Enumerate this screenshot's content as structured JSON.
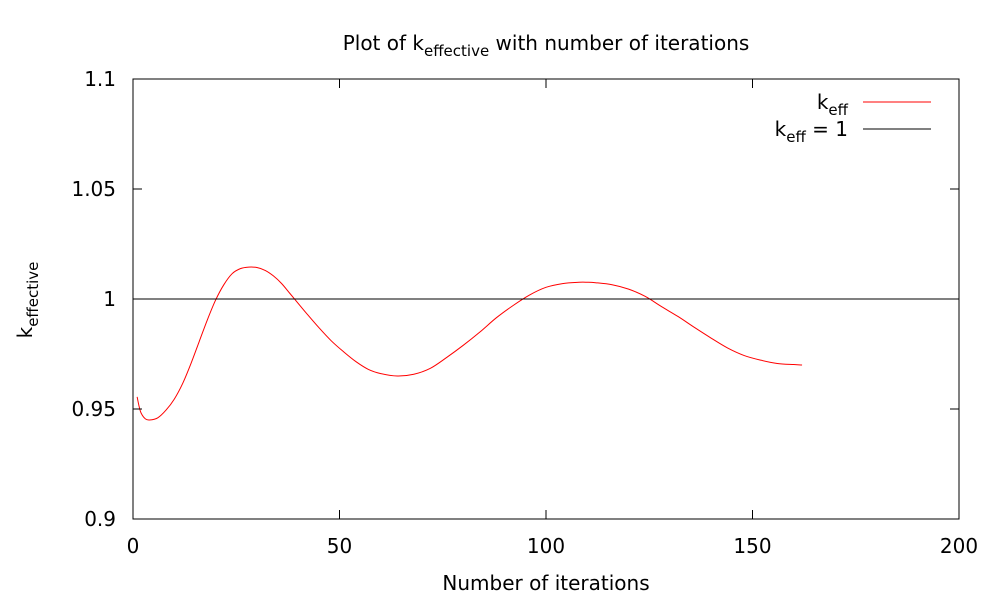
{
  "chart_data": {
    "type": "line",
    "title": {
      "prefix": "Plot of k",
      "subscript": "effective",
      "suffix": " with number of iterations"
    },
    "xlabel": "Number of iterations",
    "ylabel": {
      "base": "k",
      "subscript": "effective"
    },
    "xlim": [
      0,
      200
    ],
    "ylim": [
      0.9,
      1.1
    ],
    "x_ticks": [
      0,
      50,
      100,
      150,
      200
    ],
    "x_tick_labels": [
      "0",
      "50",
      "100",
      "150",
      "200"
    ],
    "y_ticks": [
      0.9,
      0.95,
      1.0,
      1.05,
      1.1
    ],
    "y_tick_labels": [
      "0.9",
      "0.95",
      "1",
      "1.05",
      "1.1"
    ],
    "grid": false,
    "legend_position": "top-right",
    "series": [
      {
        "name": "keff",
        "label": {
          "base": "k",
          "subscript": "eff",
          "suffix": ""
        },
        "color": "#ff0000",
        "x": [
          1,
          1.5,
          2,
          3,
          4,
          6,
          8,
          10,
          12,
          14,
          16,
          18,
          20,
          22,
          24,
          26,
          28,
          30,
          32,
          34,
          36,
          38,
          40,
          42,
          45,
          48,
          51,
          54,
          57,
          60,
          64,
          68,
          72,
          76,
          80,
          84,
          88,
          92,
          96,
          100,
          104,
          108,
          110,
          112,
          116,
          120,
          124,
          128,
          132,
          136,
          140,
          144,
          148,
          152,
          156,
          160,
          162
        ],
        "y": [
          0.9555,
          0.951,
          0.948,
          0.9455,
          0.945,
          0.946,
          0.9495,
          0.9545,
          0.9615,
          0.9705,
          0.9805,
          0.9905,
          0.9995,
          1.0065,
          1.0115,
          1.0138,
          1.0145,
          1.0143,
          1.013,
          1.0105,
          1.007,
          1.0025,
          0.998,
          0.9935,
          0.987,
          0.981,
          0.976,
          0.9715,
          0.968,
          0.9661,
          0.965,
          0.9658,
          0.9685,
          0.9735,
          0.979,
          0.985,
          0.9915,
          0.997,
          1.0018,
          1.0053,
          1.007,
          1.0076,
          1.0076,
          1.0074,
          1.0065,
          1.0045,
          1.0012,
          0.9965,
          0.992,
          0.987,
          0.9822,
          0.9777,
          0.9743,
          0.9722,
          0.9707,
          0.9702,
          0.97
        ]
      },
      {
        "name": "keff = 1",
        "label": {
          "base": "k",
          "subscript": "eff",
          "suffix": " = 1"
        },
        "color": "#000000",
        "x": [
          0,
          200
        ],
        "y": [
          1.0,
          1.0
        ]
      }
    ]
  }
}
